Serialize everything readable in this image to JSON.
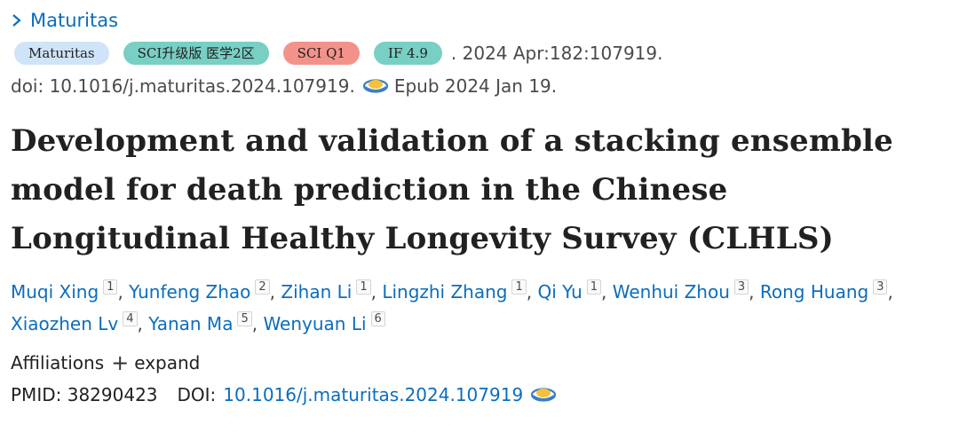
{
  "journal_link": {
    "label": "Maturitas",
    "icon": "chevron-right-icon"
  },
  "citation": {
    "badges": [
      {
        "label": "Maturitas",
        "color": "#cfe4f8"
      },
      {
        "label": "SCI升级版 医学2区",
        "color": "#78cfc3"
      },
      {
        "label": "SCI Q1",
        "color": "#f3928b"
      },
      {
        "label": "IF 4.9",
        "color": "#78cfc3"
      }
    ],
    "details": ". 2024 Apr:182:107919.",
    "doi_text": "doi: 10.1016/j.maturitas.2024.107919.",
    "epub": "Epub 2024 Jan 19."
  },
  "article": {
    "title": "Development and validation of a stacking ensemble model for death prediction in the Chinese Longitudinal Healthy Longevity Survey (CLHLS)"
  },
  "authors": [
    {
      "name": "Muqi Xing",
      "aff": "1"
    },
    {
      "name": "Yunfeng Zhao",
      "aff": "2"
    },
    {
      "name": "Zihan Li",
      "aff": "1"
    },
    {
      "name": "Lingzhi Zhang",
      "aff": "1"
    },
    {
      "name": "Qi Yu",
      "aff": "1"
    },
    {
      "name": "Wenhui Zhou",
      "aff": "3"
    },
    {
      "name": "Rong Huang",
      "aff": "3"
    },
    {
      "name": "Xiaozhen Lv",
      "aff": "4"
    },
    {
      "name": "Yanan Ma",
      "aff": "5"
    },
    {
      "name": "Wenyuan Li",
      "aff": "6"
    }
  ],
  "affiliations": {
    "label": "Affiliations",
    "expand_label": "expand",
    "expand_icon": "plus-icon"
  },
  "identifiers": {
    "pmid_label": "PMID:",
    "pmid": "38290423",
    "doi_label": "DOI:",
    "doi": "10.1016/j.maturitas.2024.107919"
  },
  "colors": {
    "link": "#0b6dbd",
    "text": "#212121",
    "muted": "#4a4a4a"
  }
}
